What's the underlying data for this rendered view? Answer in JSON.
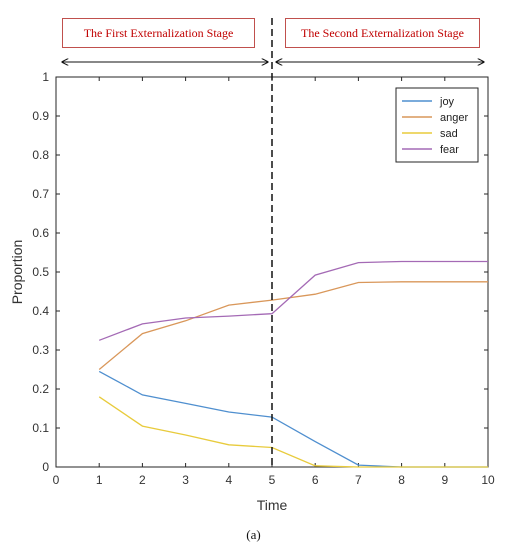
{
  "stages": {
    "first": "The First Externalization Stage",
    "second": "The Second Externalization Stage"
  },
  "caption": "(a)",
  "chart_data": {
    "type": "line",
    "xlabel": "Time",
    "ylabel": "Proportion",
    "xlim": [
      0,
      10
    ],
    "ylim": [
      0,
      1
    ],
    "x_ticks": [
      0,
      1,
      2,
      3,
      4,
      5,
      6,
      7,
      8,
      9,
      10
    ],
    "y_ticks": [
      0,
      0.1,
      0.2,
      0.3,
      0.4,
      0.5,
      0.6,
      0.7,
      0.8,
      0.9,
      1
    ],
    "y_tick_labels": [
      "0",
      "0.1",
      "0.2",
      "0.3",
      "0.4",
      "0.5",
      "0.6",
      "0.7",
      "0.8",
      "0.9",
      "1"
    ],
    "x": [
      1,
      2,
      3,
      4,
      5,
      6,
      7,
      8,
      9,
      10
    ],
    "series": [
      {
        "name": "joy",
        "color": "#4f8fcf",
        "values": [
          0.245,
          0.185,
          0.163,
          0.141,
          0.128,
          0.065,
          0.005,
          0.0,
          0.0,
          0.0
        ]
      },
      {
        "name": "anger",
        "color": "#d9975a",
        "values": [
          0.25,
          0.342,
          0.375,
          0.415,
          0.428,
          0.443,
          0.473,
          0.475,
          0.475,
          0.475
        ]
      },
      {
        "name": "sad",
        "color": "#e8cb3c",
        "values": [
          0.18,
          0.105,
          0.082,
          0.057,
          0.05,
          0.003,
          0.0,
          0.0,
          0.0,
          0.0
        ]
      },
      {
        "name": "fear",
        "color": "#a46ab5",
        "values": [
          0.325,
          0.367,
          0.382,
          0.387,
          0.393,
          0.492,
          0.524,
          0.527,
          0.527,
          0.527
        ]
      }
    ],
    "divider_x": 5,
    "legend_position": "top-right",
    "grid": false
  }
}
